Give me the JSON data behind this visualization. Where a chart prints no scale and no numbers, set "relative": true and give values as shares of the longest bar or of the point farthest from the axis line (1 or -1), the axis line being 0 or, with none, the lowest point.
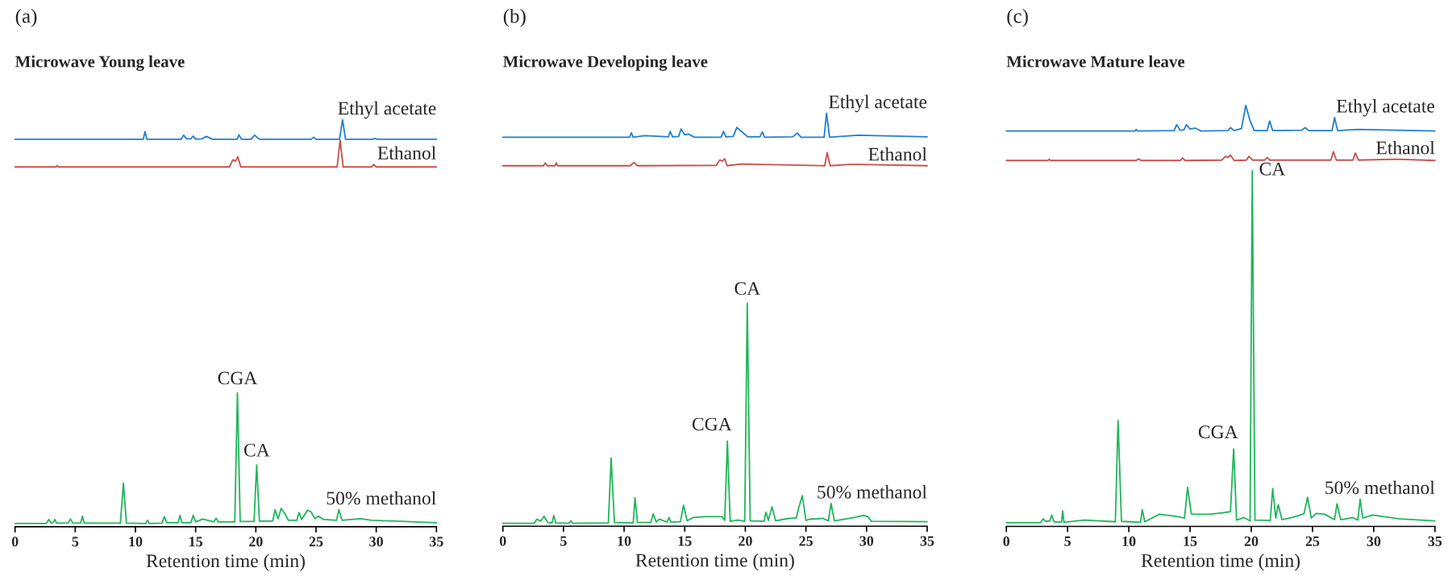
{
  "chart_data": [
    {
      "type": "line",
      "title": "(a)",
      "subtitle": "Microwave Young leave",
      "xlabel": "Retention time (min)",
      "relative": true,
      "xlim": [
        0,
        35
      ],
      "xticks": [
        0,
        5,
        10,
        15,
        20,
        25,
        30,
        35
      ],
      "tick_labels": "x",
      "grid": false,
      "legend": false,
      "marker": "none",
      "line_style": "solid",
      "annotations": [
        {
          "text": "CGA",
          "x": 18.47,
          "y": 0.329
        },
        {
          "text": "CA",
          "x": 20.07,
          "y": 0.152
        }
      ],
      "series": [
        {
          "name": "Ethyl acetate",
          "color": "#1f7fd4",
          "x": [
            0,
            10.65,
            10.8,
            10.95,
            13.8,
            14.0,
            14.25,
            14.6,
            14.8,
            15.0,
            15.5,
            15.9,
            16.4,
            18.45,
            18.6,
            18.8,
            19.6,
            19.9,
            20.3,
            24.6,
            24.8,
            25.0,
            26.95,
            27.2,
            27.45,
            29.7,
            29.9,
            30.1,
            35
          ],
          "values": [
            0.952,
            0.952,
            0.971,
            0.952,
            0.952,
            0.962,
            0.953,
            0.953,
            0.96,
            0.952,
            0.953,
            0.959,
            0.952,
            0.952,
            0.963,
            0.952,
            0.952,
            0.962,
            0.952,
            0.952,
            0.957,
            0.952,
            0.952,
            1.0,
            0.952,
            0.952,
            0.954,
            0.952,
            0.952
          ]
        },
        {
          "name": "Ethanol",
          "color": "#c94f4c",
          "x": [
            0,
            3.4,
            3.5,
            3.6,
            17.8,
            18.1,
            18.3,
            18.5,
            18.75,
            26.75,
            27.0,
            27.25,
            29.6,
            29.8,
            30.0,
            35
          ],
          "values": [
            0.884,
            0.884,
            0.887,
            0.884,
            0.884,
            0.902,
            0.898,
            0.909,
            0.884,
            0.884,
            0.95,
            0.884,
            0.884,
            0.89,
            0.884,
            0.884
          ]
        },
        {
          "name": "50% methanol",
          "color": "#1fb65a",
          "x": [
            0,
            2.6,
            2.8,
            3.0,
            3.15,
            3.3,
            3.45,
            4.4,
            4.6,
            4.8,
            5.45,
            5.6,
            5.75,
            8.75,
            9.0,
            9.25,
            10.85,
            11.0,
            11.15,
            12.2,
            12.4,
            12.6,
            13.55,
            13.7,
            13.85,
            14.6,
            14.8,
            15.0,
            15.6,
            16.5,
            16.7,
            16.9,
            18.25,
            18.47,
            18.7,
            19.85,
            20.07,
            20.3,
            21.4,
            21.6,
            21.85,
            22.1,
            22.4,
            22.7,
            23.4,
            23.6,
            23.8,
            24.3,
            24.6,
            24.9,
            25.2,
            25.6,
            26.7,
            26.9,
            27.15,
            28.7,
            29.6,
            35
          ],
          "values": [
            0.008,
            0.008,
            0.018,
            0.009,
            0.01,
            0.018,
            0.009,
            0.009,
            0.019,
            0.009,
            0.009,
            0.026,
            0.009,
            0.009,
            0.107,
            0.009,
            0.008,
            0.016,
            0.008,
            0.009,
            0.025,
            0.01,
            0.01,
            0.028,
            0.01,
            0.01,
            0.028,
            0.012,
            0.019,
            0.012,
            0.021,
            0.012,
            0.012,
            0.329,
            0.013,
            0.013,
            0.152,
            0.014,
            0.014,
            0.042,
            0.02,
            0.045,
            0.033,
            0.016,
            0.016,
            0.035,
            0.018,
            0.041,
            0.036,
            0.02,
            0.026,
            0.018,
            0.016,
            0.042,
            0.016,
            0.02,
            0.016,
            0.01
          ]
        }
      ]
    },
    {
      "type": "line",
      "title": "(b)",
      "subtitle": "Microwave Developing leave",
      "xlabel": "Retention time (min)",
      "relative": true,
      "xlim": [
        0,
        35
      ],
      "xticks": [
        0,
        5,
        10,
        15,
        20,
        25,
        30,
        35
      ],
      "tick_labels": "x",
      "grid": false,
      "legend": false,
      "marker": "none",
      "line_style": "solid",
      "annotations": [
        {
          "text": "CGA",
          "x": 18.52,
          "y": 0.206
        },
        {
          "text": "CA",
          "x": 20.16,
          "y": 0.54
        }
      ],
      "series": [
        {
          "name": "Ethyl acetate",
          "color": "#1f7fd4",
          "x": [
            0,
            10.45,
            10.6,
            10.75,
            11.7,
            13.65,
            13.8,
            14.0,
            14.5,
            14.7,
            15.0,
            15.3,
            15.8,
            18.0,
            18.2,
            18.4,
            19.0,
            19.3,
            19.8,
            20.2,
            21.2,
            21.4,
            21.6,
            23.9,
            24.3,
            24.6,
            26.5,
            26.7,
            26.95,
            29.3,
            35
          ],
          "values": [
            0.942,
            0.942,
            0.953,
            0.942,
            0.946,
            0.943,
            0.956,
            0.943,
            0.944,
            0.962,
            0.948,
            0.95,
            0.942,
            0.942,
            0.956,
            0.943,
            0.944,
            0.966,
            0.953,
            0.943,
            0.943,
            0.955,
            0.942,
            0.943,
            0.952,
            0.942,
            0.942,
            1.0,
            0.942,
            0.947,
            0.943
          ]
        },
        {
          "name": "Ethanol",
          "color": "#c94f4c",
          "x": [
            0,
            3.35,
            3.5,
            3.65,
            4.3,
            4.4,
            4.5,
            10.5,
            10.8,
            11.1,
            17.6,
            17.9,
            18.1,
            18.3,
            18.5,
            19.6,
            26.55,
            26.75,
            27.0,
            28.6,
            29.4,
            35
          ],
          "values": [
            0.873,
            0.873,
            0.88,
            0.873,
            0.873,
            0.88,
            0.873,
            0.873,
            0.881,
            0.873,
            0.874,
            0.887,
            0.884,
            0.89,
            0.873,
            0.877,
            0.873,
            0.905,
            0.873,
            0.876,
            0.876,
            0.873
          ]
        },
        {
          "name": "50% methanol",
          "color": "#1fb65a",
          "x": [
            0,
            2.6,
            2.8,
            3.1,
            3.4,
            3.7,
            4.05,
            4.2,
            4.35,
            5.45,
            5.6,
            5.75,
            8.7,
            8.93,
            9.2,
            10.75,
            10.9,
            11.1,
            12.2,
            12.4,
            12.65,
            12.9,
            13.55,
            13.7,
            13.85,
            14.65,
            14.9,
            15.2,
            15.7,
            16.8,
            17.5,
            18.1,
            18.3,
            18.52,
            18.75,
            19.4,
            19.95,
            20.16,
            20.4,
            21.55,
            21.7,
            21.9,
            22.2,
            22.5,
            23.4,
            24.2,
            24.4,
            24.7,
            25.0,
            25.3,
            26.0,
            26.4,
            26.85,
            27.07,
            27.35,
            29.0,
            29.7,
            30.1,
            30.4,
            35
          ],
          "values": [
            0.007,
            0.007,
            0.017,
            0.012,
            0.024,
            0.009,
            0.008,
            0.026,
            0.008,
            0.007,
            0.013,
            0.007,
            0.008,
            0.165,
            0.009,
            0.008,
            0.069,
            0.009,
            0.009,
            0.03,
            0.01,
            0.017,
            0.01,
            0.021,
            0.01,
            0.011,
            0.051,
            0.013,
            0.021,
            0.023,
            0.023,
            0.023,
            0.014,
            0.206,
            0.012,
            0.015,
            0.012,
            0.54,
            0.013,
            0.012,
            0.034,
            0.014,
            0.047,
            0.013,
            0.018,
            0.02,
            0.044,
            0.074,
            0.014,
            0.017,
            0.018,
            0.019,
            0.013,
            0.055,
            0.013,
            0.021,
            0.026,
            0.023,
            0.012,
            0.011
          ]
        }
      ]
    },
    {
      "type": "line",
      "title": "(c)",
      "subtitle": "Microwave Mature leave",
      "xlabel": "Retention time (min)",
      "relative": true,
      "xlim": [
        0,
        35
      ],
      "xticks": [
        0,
        5,
        10,
        15,
        20,
        25,
        30,
        35
      ],
      "tick_labels": "x",
      "grid": false,
      "legend": false,
      "marker": "none",
      "line_style": "solid",
      "annotations": [
        {
          "text": "CGA",
          "x": 18.56,
          "y": 0.184
        },
        {
          "text": "CA",
          "x": 20.08,
          "y": 0.845
        }
      ],
      "series": [
        {
          "name": "Ethyl acetate",
          "color": "#1f7fd4",
          "x": [
            0,
            10.5,
            10.6,
            10.7,
            13.7,
            13.9,
            14.2,
            14.5,
            14.7,
            15.0,
            15.4,
            15.9,
            18.1,
            18.3,
            18.6,
            19.2,
            19.55,
            19.9,
            20.25,
            21.3,
            21.5,
            21.75,
            24.1,
            24.4,
            24.7,
            26.6,
            26.8,
            27.05,
            28.7,
            35
          ],
          "values": [
            0.939,
            0.939,
            0.943,
            0.939,
            0.94,
            0.954,
            0.941,
            0.942,
            0.954,
            0.944,
            0.946,
            0.939,
            0.94,
            0.947,
            0.94,
            0.945,
            1.0,
            0.963,
            0.94,
            0.94,
            0.963,
            0.94,
            0.941,
            0.947,
            0.94,
            0.94,
            0.971,
            0.94,
            0.943,
            0.939
          ]
        },
        {
          "name": "Ethanol",
          "color": "#c94f4c",
          "x": [
            0,
            3.4,
            3.5,
            3.6,
            10.6,
            10.8,
            11.0,
            14.2,
            14.4,
            14.6,
            17.6,
            17.9,
            18.1,
            18.3,
            18.6,
            19.6,
            19.8,
            20.1,
            21.1,
            21.3,
            21.5,
            26.5,
            26.7,
            26.95,
            28.3,
            28.5,
            28.75,
            31.9,
            35
          ],
          "values": [
            0.869,
            0.869,
            0.872,
            0.869,
            0.869,
            0.873,
            0.869,
            0.869,
            0.875,
            0.869,
            0.87,
            0.879,
            0.876,
            0.882,
            0.869,
            0.87,
            0.879,
            0.87,
            0.87,
            0.876,
            0.87,
            0.87,
            0.89,
            0.87,
            0.87,
            0.887,
            0.87,
            0.872,
            0.869
          ]
        },
        {
          "name": "50% methanol",
          "color": "#1fb65a",
          "x": [
            0,
            2.8,
            3.0,
            3.2,
            3.55,
            3.7,
            3.9,
            4.5,
            4.6,
            4.7,
            6.4,
            8.9,
            9.12,
            9.4,
            10.95,
            11.1,
            11.3,
            12.5,
            13.8,
            14.55,
            14.8,
            15.1,
            15.3,
            16.6,
            17.5,
            18.3,
            18.56,
            18.8,
            19.4,
            19.9,
            20.08,
            20.3,
            21.55,
            21.75,
            22.0,
            22.2,
            22.5,
            23.4,
            24.3,
            24.6,
            24.9,
            25.3,
            26.0,
            26.8,
            27.0,
            27.3,
            28.3,
            28.7,
            28.89,
            29.1,
            29.9,
            32.1,
            35
          ],
          "values": [
            0.009,
            0.009,
            0.018,
            0.012,
            0.013,
            0.027,
            0.011,
            0.01,
            0.037,
            0.01,
            0.015,
            0.011,
            0.252,
            0.012,
            0.01,
            0.04,
            0.011,
            0.029,
            0.024,
            0.02,
            0.093,
            0.03,
            0.029,
            0.029,
            0.032,
            0.035,
            0.184,
            0.015,
            0.021,
            0.013,
            0.845,
            0.015,
            0.014,
            0.09,
            0.02,
            0.052,
            0.016,
            0.022,
            0.03,
            0.069,
            0.02,
            0.031,
            0.029,
            0.016,
            0.054,
            0.016,
            0.021,
            0.015,
            0.065,
            0.02,
            0.027,
            0.018,
            0.013
          ]
        }
      ]
    }
  ]
}
